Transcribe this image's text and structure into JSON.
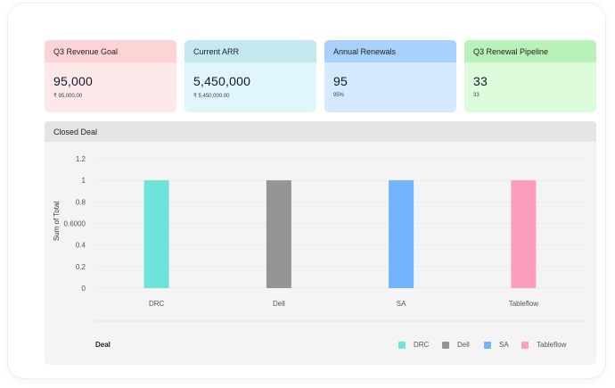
{
  "cards": [
    {
      "title": "Q3 Revenue Goal",
      "value": "95,000",
      "sub": "₹ 95,000.00",
      "head_color": "#fdd4d6",
      "body_color": "#fee9ea"
    },
    {
      "title": "Current ARR",
      "value": "5,450,000",
      "sub": "₹ 5,450,000.00",
      "head_color": "#c5e8ef",
      "body_color": "#e1f6fc"
    },
    {
      "title": "Annual Renewals",
      "value": "95",
      "sub": "95%",
      "head_color": "#a8d2fb",
      "body_color": "#d6eaff"
    },
    {
      "title": "Q3 Renewal Pipeline",
      "value": "33",
      "sub": "33",
      "head_color": "#b8f2b8",
      "body_color": "#dcfcdc"
    }
  ],
  "panel": {
    "title": "Closed Deal",
    "legend_title": "Deal"
  },
  "chart_data": {
    "type": "bar",
    "title": "Closed Deal",
    "xlabel": "Deal",
    "ylabel": "Sum of Total",
    "categories": [
      "DRC",
      "Dell",
      "SA",
      "Tableflow"
    ],
    "values": [
      1,
      1,
      1,
      1
    ],
    "colors": [
      "#6ee3dc",
      "#959595",
      "#73b3fb",
      "#fb9dbb"
    ],
    "ylim": [
      0,
      1.2
    ],
    "yticks": [
      {
        "value": 0,
        "label": "0"
      },
      {
        "value": 0.2,
        "label": "0.2"
      },
      {
        "value": 0.4,
        "label": "0.4"
      },
      {
        "value": 0.6,
        "label": "0.6000"
      },
      {
        "value": 0.8,
        "label": "0.8"
      },
      {
        "value": 1,
        "label": "1"
      },
      {
        "value": 1.2,
        "label": "1.2"
      }
    ],
    "legend_position": "bottom-right"
  }
}
